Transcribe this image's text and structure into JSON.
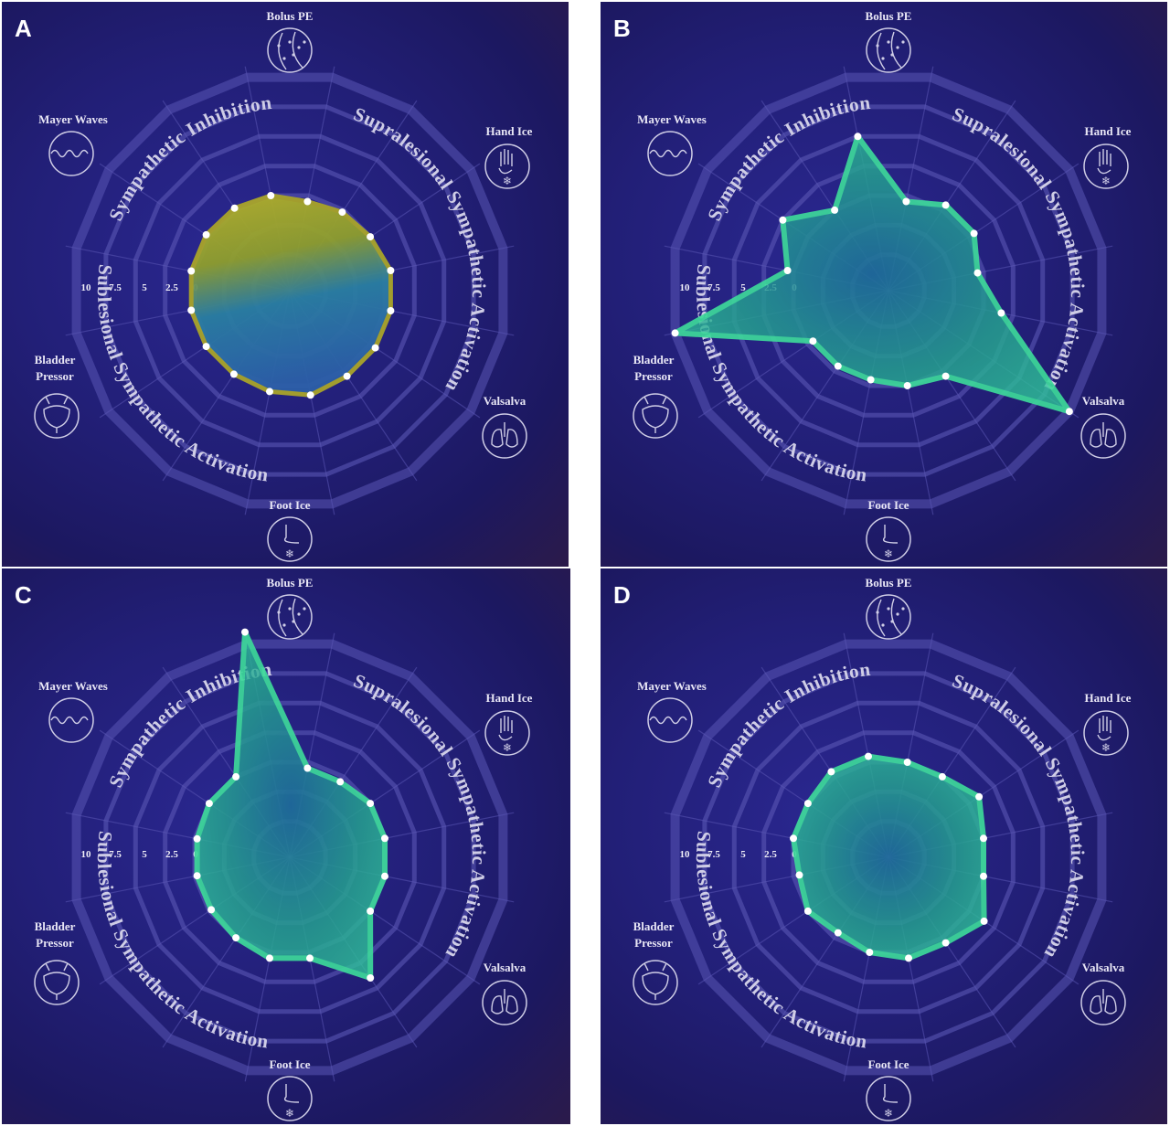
{
  "stimuli": {
    "bolus_pe": "Bolus PE",
    "hand_ice": "Hand Ice",
    "valsalva": "Valsalva",
    "foot_ice": "Foot Ice",
    "bladder_pressor": [
      "Bladder",
      "Pressor"
    ],
    "mayer_waves": "Mayer Waves"
  },
  "arc_labels": {
    "top": "Sympathetic Inhibition",
    "right": "Supralesional Sympathetic Activation",
    "bottom": "Sublesional Sympathetic Activation"
  },
  "scale_labels": [
    "10",
    "7.5",
    "5",
    "2.5",
    "0"
  ],
  "colors": {
    "background": "#221f77",
    "grid": "#5a56b4",
    "panel_a_fill_top": "#b7b22a",
    "panel_a_fill_bottom": "#1f77a8",
    "green_stroke": "#3dd99a",
    "point": "#ffffff"
  },
  "icons": {
    "bolus_pe": "bloodstream-icon",
    "hand_ice": "hand-snowflake-icon",
    "valsalva": "lungs-icon",
    "foot_ice": "foot-snowflake-icon",
    "bladder_pressor": "bladder-icon",
    "mayer_waves": "wave-icon"
  },
  "chart_data": [
    {
      "type": "radar",
      "panel": "A",
      "axes": 16,
      "scale_labels": [
        "10",
        "7.5",
        "5",
        "2.5",
        "0"
      ],
      "values": [
        -0.5,
        -0.2,
        0.0,
        0.5,
        0.5,
        0.5,
        0.5,
        0.8,
        0.5,
        0.3,
        0.3,
        0.3,
        0.3,
        0.3,
        0.2,
        0.0
      ]
    },
    {
      "type": "radar",
      "panel": "B",
      "axes": 16,
      "scale_labels": [
        "10",
        "7.5",
        "5",
        "2.5",
        "0"
      ],
      "values": [
        -0.5,
        0.5,
        0.5,
        -0.5,
        1.5,
        10.0,
        0.5,
        0.0,
        -0.5,
        -0.5,
        -0.5,
        10.0,
        0.5,
        2.5,
        0.0,
        5.0
      ]
    },
    {
      "type": "radar",
      "panel": "C",
      "axes": 16,
      "scale_labels": [
        "10",
        "7.5",
        "5",
        "2.5",
        "0"
      ],
      "values": [
        -0.5,
        -0.5,
        0.0,
        0.0,
        0.0,
        0.0,
        4.0,
        0.5,
        0.5,
        0.0,
        -0.2,
        -0.2,
        -0.2,
        0.0,
        0.0,
        11.0
      ]
    },
    {
      "type": "radar",
      "panel": "D",
      "axes": 16,
      "scale_labels": [
        "10",
        "7.5",
        "5",
        "2.5",
        "0"
      ],
      "values": [
        0.0,
        0.0,
        1.0,
        0.0,
        0.0,
        1.5,
        0.5,
        0.5,
        0.0,
        -0.5,
        0.0,
        -0.5,
        0.0,
        0.0,
        0.5,
        0.5
      ]
    }
  ]
}
